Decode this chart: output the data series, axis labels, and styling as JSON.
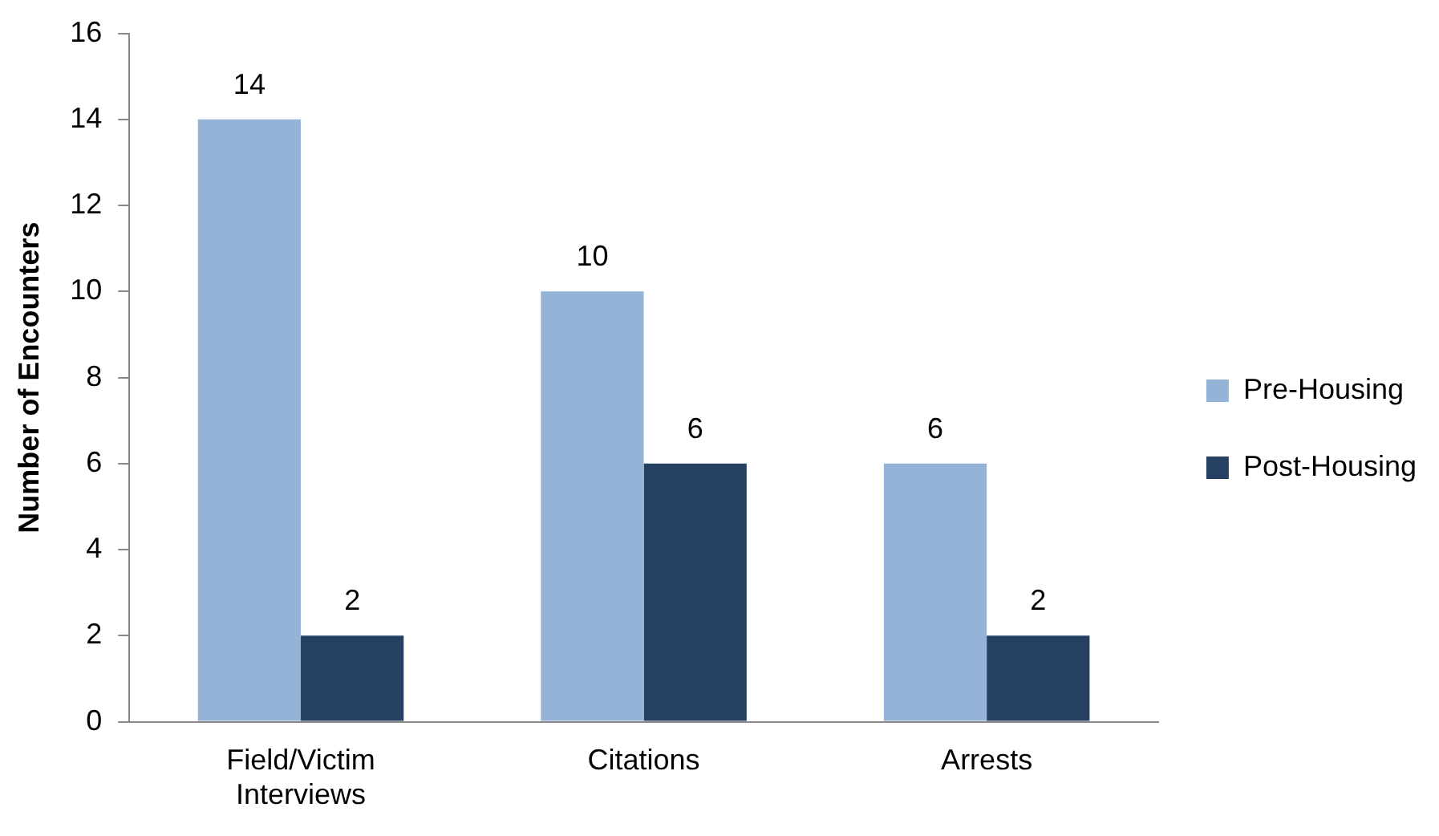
{
  "chart_data": {
    "type": "bar",
    "ylabel": "Number of Encounters",
    "categories": [
      "Field/Victim Interviews",
      "Citations",
      "Arrests"
    ],
    "series": [
      {
        "name": "Pre-Housing",
        "color": "#95b3d7",
        "values": [
          14,
          10,
          6
        ]
      },
      {
        "name": "Post-Housing",
        "color": "#254061",
        "values": [
          2,
          6,
          2
        ]
      }
    ],
    "ylim": [
      0,
      16
    ],
    "yticks": [
      0,
      2,
      4,
      6,
      8,
      10,
      12,
      14,
      16
    ],
    "grid": false,
    "legend": "right",
    "data_labels": true
  }
}
